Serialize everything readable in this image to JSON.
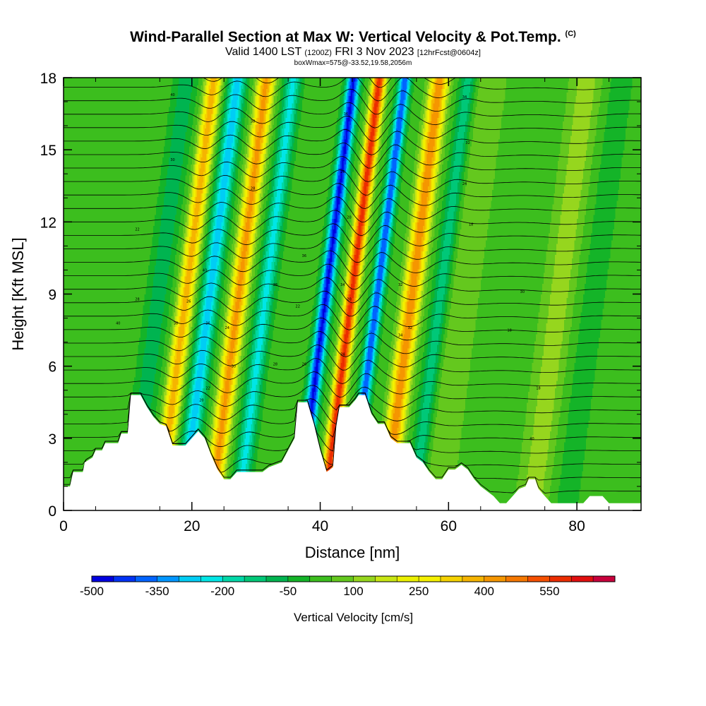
{
  "title": {
    "main": "Wind-Parallel Section at Max W: Vertical Velocity & Pot.Temp.",
    "copyright": "(C)",
    "valid_prefix": "Valid 1400 LST",
    "valid_utc": "(1200Z)",
    "valid_suffix": "FRI 3 Nov 2023",
    "forecast": "[12hrFcst@0604z]",
    "box_info": "boxWmax=575@-33.52,19.58,2056m"
  },
  "chart_data": {
    "type": "heatmap",
    "xlabel": "Distance [nm]",
    "ylabel": "Height [Kft MSL]",
    "xlim": [
      0,
      90
    ],
    "ylim": [
      0,
      18
    ],
    "x_ticks": [
      0,
      20,
      40,
      60,
      80
    ],
    "y_ticks": [
      0,
      3,
      6,
      9,
      12,
      15,
      18
    ],
    "x_tick_labels": [
      "0",
      "20",
      "40",
      "60",
      "80"
    ],
    "y_tick_labels": [
      "0",
      "3",
      "6",
      "9",
      "12",
      "15",
      "18"
    ],
    "terrain_kft": [
      [
        0,
        1.0
      ],
      [
        1,
        1.0
      ],
      [
        1.5,
        1.6
      ],
      [
        3,
        1.6
      ],
      [
        3.3,
        2.0
      ],
      [
        4.5,
        2.2
      ],
      [
        5,
        2.5
      ],
      [
        6,
        2.5
      ],
      [
        6.5,
        2.8
      ],
      [
        8.5,
        2.8
      ],
      [
        9,
        3.2
      ],
      [
        10,
        3.2
      ],
      [
        10.5,
        4.8
      ],
      [
        12,
        4.8
      ],
      [
        13,
        4.3
      ],
      [
        14,
        3.9
      ],
      [
        15,
        3.6
      ],
      [
        16,
        3.5
      ],
      [
        17,
        2.7
      ],
      [
        18,
        2.7
      ],
      [
        19,
        2.7
      ],
      [
        20,
        3.0
      ],
      [
        21,
        3.3
      ],
      [
        22,
        3.0
      ],
      [
        23,
        2.3
      ],
      [
        24,
        1.7
      ],
      [
        25,
        1.3
      ],
      [
        26,
        1.3
      ],
      [
        27,
        1.6
      ],
      [
        29,
        1.6
      ],
      [
        31,
        1.6
      ],
      [
        32,
        1.8
      ],
      [
        34,
        2.0
      ],
      [
        35,
        2.5
      ],
      [
        36,
        3.0
      ],
      [
        36.5,
        4.5
      ],
      [
        38,
        4.5
      ],
      [
        39,
        3.6
      ],
      [
        40,
        2.5
      ],
      [
        41,
        1.6
      ],
      [
        42,
        1.8
      ],
      [
        42.5,
        3.5
      ],
      [
        43,
        4.3
      ],
      [
        44.5,
        4.3
      ],
      [
        45.5,
        4.6
      ],
      [
        46,
        4.8
      ],
      [
        47,
        4.8
      ],
      [
        48,
        4.0
      ],
      [
        49,
        3.6
      ],
      [
        50,
        3.6
      ],
      [
        51,
        3.0
      ],
      [
        52,
        2.8
      ],
      [
        54,
        2.8
      ],
      [
        55,
        2.2
      ],
      [
        56,
        2.0
      ],
      [
        57,
        1.6
      ],
      [
        58,
        1.3
      ],
      [
        59,
        1.3
      ],
      [
        60,
        1.7
      ],
      [
        61,
        1.7
      ],
      [
        62,
        1.9
      ],
      [
        63,
        1.7
      ],
      [
        64,
        1.3
      ],
      [
        65,
        1.0
      ],
      [
        66,
        0.8
      ],
      [
        67,
        0.6
      ],
      [
        68,
        0.3
      ],
      [
        69,
        0.3
      ],
      [
        70,
        0.6
      ],
      [
        71,
        0.9
      ],
      [
        72,
        1.0
      ],
      [
        72.5,
        1.3
      ],
      [
        73.5,
        1.3
      ],
      [
        74,
        0.9
      ],
      [
        75,
        0.6
      ],
      [
        76,
        0.3
      ],
      [
        80,
        0.3
      ],
      [
        81,
        0.3
      ],
      [
        82,
        0.6
      ],
      [
        84,
        0.6
      ],
      [
        85,
        0.3
      ],
      [
        90,
        0.3
      ]
    ],
    "vertical_velocity_cm_s": {
      "background": 20,
      "tilt_nm_per_kft": 0.48,
      "bands": [
        {
          "x0_nm": 10.5,
          "amplitude": -110,
          "width_nm": 1.6
        },
        {
          "x0_nm": 14.8,
          "amplitude": 360,
          "width_nm": 1.2
        },
        {
          "x0_nm": 18.5,
          "amplitude": -300,
          "width_nm": 1.3
        },
        {
          "x0_nm": 23.0,
          "amplitude": 400,
          "width_nm": 1.3
        },
        {
          "x0_nm": 27.2,
          "amplitude": -240,
          "width_nm": 1.2
        },
        {
          "x0_nm": 36.6,
          "amplitude": -480,
          "width_nm": 1.0
        },
        {
          "x0_nm": 40.6,
          "amplitude": 560,
          "width_nm": 1.0
        },
        {
          "x0_nm": 44.6,
          "amplitude": -420,
          "width_nm": 0.9
        },
        {
          "x0_nm": 50.0,
          "amplitude": 420,
          "width_nm": 1.4
        },
        {
          "x0_nm": 54.5,
          "amplitude": -160,
          "width_nm": 1.2
        },
        {
          "x0_nm": 58.0,
          "amplitude": 80,
          "width_nm": 2.5
        },
        {
          "x0_nm": 73.0,
          "amplitude": 110,
          "width_nm": 2.5
        },
        {
          "x0_nm": 78.0,
          "amplitude": -40,
          "width_nm": 2.5
        }
      ]
    },
    "colorbar": {
      "label": "Vertical Velocity [cm/s]",
      "min": -500,
      "max": 650,
      "step": 50,
      "tick_values": [
        -500,
        -350,
        -200,
        -50,
        100,
        250,
        400,
        550
      ],
      "tick_labels": [
        "-500",
        "-350",
        "-200",
        "-50",
        "100",
        "250",
        "400",
        "550"
      ],
      "colors": [
        "#0000e0",
        "#0032f5",
        "#0064ff",
        "#0096ff",
        "#00cdf5",
        "#00e6e6",
        "#00d8a8",
        "#00c878",
        "#00b450",
        "#14b428",
        "#3cbe1e",
        "#64c81e",
        "#96d61e",
        "#c8e614",
        "#ebf000",
        "#f5f000",
        "#f5d200",
        "#f5b400",
        "#f59600",
        "#f57800",
        "#f55000",
        "#eb2d00",
        "#e10f0f",
        "#c8003c"
      ]
    },
    "pot_temp_contours": {
      "interval_k": 2,
      "count": 34,
      "labeled_values": [
        "40",
        "38",
        "36",
        "34",
        "32",
        "30",
        "28",
        "26",
        "24",
        "22",
        "20",
        "18"
      ]
    }
  }
}
